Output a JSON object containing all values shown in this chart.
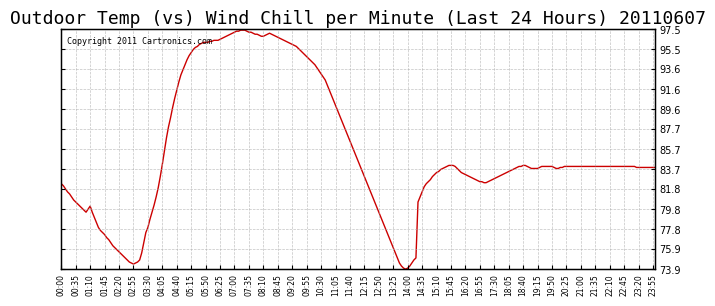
{
  "title": "Outdoor Temp (vs) Wind Chill per Minute (Last 24 Hours) 20110607",
  "copyright": "Copyright 2011 Cartronics.com",
  "ylabel_right_ticks": [
    97.5,
    95.5,
    93.6,
    91.6,
    89.6,
    87.7,
    85.7,
    83.7,
    81.8,
    79.8,
    77.8,
    75.9,
    73.9
  ],
  "ymin": 73.9,
  "ymax": 97.5,
  "line_color": "#cc0000",
  "background_color": "#ffffff",
  "grid_color": "#aaaaaa",
  "title_fontsize": 13,
  "x_tick_interval": 5,
  "curve_points": [
    [
      0,
      82.3
    ],
    [
      5,
      82.1
    ],
    [
      10,
      81.8
    ],
    [
      15,
      81.5
    ],
    [
      20,
      81.3
    ],
    [
      25,
      81.0
    ],
    [
      30,
      80.7
    ],
    [
      35,
      80.5
    ],
    [
      40,
      80.3
    ],
    [
      45,
      80.1
    ],
    [
      50,
      79.9
    ],
    [
      55,
      79.7
    ],
    [
      60,
      79.5
    ],
    [
      65,
      79.8
    ],
    [
      70,
      80.1
    ],
    [
      75,
      79.5
    ],
    [
      80,
      79.0
    ],
    [
      85,
      78.5
    ],
    [
      90,
      78.0
    ],
    [
      95,
      77.7
    ],
    [
      100,
      77.5
    ],
    [
      105,
      77.3
    ],
    [
      110,
      77.0
    ],
    [
      115,
      76.8
    ],
    [
      120,
      76.5
    ],
    [
      125,
      76.2
    ],
    [
      130,
      76.0
    ],
    [
      135,
      75.8
    ],
    [
      140,
      75.6
    ],
    [
      145,
      75.4
    ],
    [
      150,
      75.2
    ],
    [
      155,
      75.0
    ],
    [
      160,
      74.8
    ],
    [
      165,
      74.6
    ],
    [
      170,
      74.5
    ],
    [
      175,
      74.4
    ],
    [
      180,
      74.5
    ],
    [
      185,
      74.6
    ],
    [
      190,
      74.8
    ],
    [
      195,
      75.5
    ],
    [
      200,
      76.5
    ],
    [
      205,
      77.5
    ],
    [
      210,
      78.0
    ],
    [
      215,
      78.8
    ],
    [
      220,
      79.5
    ],
    [
      225,
      80.2
    ],
    [
      230,
      81.0
    ],
    [
      235,
      81.9
    ],
    [
      240,
      83.0
    ],
    [
      245,
      84.2
    ],
    [
      250,
      85.5
    ],
    [
      255,
      86.8
    ],
    [
      260,
      87.9
    ],
    [
      265,
      88.8
    ],
    [
      270,
      89.8
    ],
    [
      275,
      90.7
    ],
    [
      280,
      91.5
    ],
    [
      285,
      92.3
    ],
    [
      290,
      93.0
    ],
    [
      295,
      93.5
    ],
    [
      300,
      94.0
    ],
    [
      305,
      94.5
    ],
    [
      310,
      94.9
    ],
    [
      315,
      95.2
    ],
    [
      320,
      95.5
    ],
    [
      325,
      95.7
    ],
    [
      330,
      95.8
    ],
    [
      335,
      96.0
    ],
    [
      340,
      96.1
    ],
    [
      345,
      96.2
    ],
    [
      350,
      96.2
    ],
    [
      355,
      96.2
    ],
    [
      360,
      96.3
    ],
    [
      365,
      96.3
    ],
    [
      370,
      96.4
    ],
    [
      375,
      96.4
    ],
    [
      380,
      96.4
    ],
    [
      385,
      96.5
    ],
    [
      390,
      96.6
    ],
    [
      395,
      96.7
    ],
    [
      400,
      96.8
    ],
    [
      405,
      96.9
    ],
    [
      410,
      97.0
    ],
    [
      415,
      97.1
    ],
    [
      420,
      97.2
    ],
    [
      425,
      97.3
    ],
    [
      430,
      97.3
    ],
    [
      435,
      97.4
    ],
    [
      440,
      97.4
    ],
    [
      445,
      97.4
    ],
    [
      450,
      97.3
    ],
    [
      455,
      97.2
    ],
    [
      460,
      97.2
    ],
    [
      465,
      97.1
    ],
    [
      470,
      97.0
    ],
    [
      475,
      97.0
    ],
    [
      480,
      96.9
    ],
    [
      485,
      96.8
    ],
    [
      490,
      96.8
    ],
    [
      495,
      96.9
    ],
    [
      500,
      97.0
    ],
    [
      505,
      97.1
    ],
    [
      510,
      97.0
    ],
    [
      515,
      96.9
    ],
    [
      520,
      96.8
    ],
    [
      525,
      96.7
    ],
    [
      530,
      96.6
    ],
    [
      535,
      96.5
    ],
    [
      540,
      96.4
    ],
    [
      545,
      96.3
    ],
    [
      550,
      96.2
    ],
    [
      555,
      96.1
    ],
    [
      560,
      96.0
    ],
    [
      565,
      95.9
    ],
    [
      570,
      95.8
    ],
    [
      575,
      95.6
    ],
    [
      580,
      95.4
    ],
    [
      585,
      95.2
    ],
    [
      590,
      95.0
    ],
    [
      595,
      94.8
    ],
    [
      600,
      94.6
    ],
    [
      605,
      94.4
    ],
    [
      610,
      94.2
    ],
    [
      615,
      94.0
    ],
    [
      620,
      93.7
    ],
    [
      625,
      93.4
    ],
    [
      630,
      93.1
    ],
    [
      635,
      92.8
    ],
    [
      640,
      92.5
    ],
    [
      645,
      92.0
    ],
    [
      650,
      91.5
    ],
    [
      655,
      91.0
    ],
    [
      660,
      90.5
    ],
    [
      665,
      90.0
    ],
    [
      670,
      89.5
    ],
    [
      675,
      89.0
    ],
    [
      680,
      88.5
    ],
    [
      685,
      88.0
    ],
    [
      690,
      87.5
    ],
    [
      695,
      87.0
    ],
    [
      700,
      86.5
    ],
    [
      705,
      86.0
    ],
    [
      710,
      85.5
    ],
    [
      715,
      85.0
    ],
    [
      720,
      84.5
    ],
    [
      725,
      84.0
    ],
    [
      730,
      83.5
    ],
    [
      735,
      83.0
    ],
    [
      740,
      82.5
    ],
    [
      745,
      82.0
    ],
    [
      750,
      81.5
    ],
    [
      755,
      81.0
    ],
    [
      760,
      80.5
    ],
    [
      765,
      80.0
    ],
    [
      770,
      79.5
    ],
    [
      775,
      79.0
    ],
    [
      780,
      78.5
    ],
    [
      785,
      78.0
    ],
    [
      790,
      77.5
    ],
    [
      795,
      77.0
    ],
    [
      800,
      76.5
    ],
    [
      805,
      76.0
    ],
    [
      810,
      75.5
    ],
    [
      815,
      75.0
    ],
    [
      820,
      74.5
    ],
    [
      825,
      74.2
    ],
    [
      830,
      74.0
    ],
    [
      835,
      73.9
    ],
    [
      840,
      74.0
    ],
    [
      845,
      74.2
    ],
    [
      850,
      74.5
    ],
    [
      855,
      74.8
    ],
    [
      860,
      75.0
    ],
    [
      865,
      80.5
    ],
    [
      870,
      81.0
    ],
    [
      875,
      81.5
    ],
    [
      880,
      82.0
    ],
    [
      885,
      82.3
    ],
    [
      890,
      82.5
    ],
    [
      895,
      82.7
    ],
    [
      900,
      83.0
    ],
    [
      905,
      83.2
    ],
    [
      910,
      83.4
    ],
    [
      915,
      83.5
    ],
    [
      920,
      83.7
    ],
    [
      925,
      83.8
    ],
    [
      930,
      83.9
    ],
    [
      935,
      84.0
    ],
    [
      940,
      84.1
    ],
    [
      945,
      84.1
    ],
    [
      950,
      84.1
    ],
    [
      955,
      84.0
    ],
    [
      960,
      83.8
    ],
    [
      965,
      83.6
    ],
    [
      970,
      83.4
    ],
    [
      975,
      83.3
    ],
    [
      980,
      83.2
    ],
    [
      985,
      83.1
    ],
    [
      990,
      83.0
    ],
    [
      995,
      82.9
    ],
    [
      1000,
      82.8
    ],
    [
      1005,
      82.7
    ],
    [
      1010,
      82.6
    ],
    [
      1015,
      82.5
    ],
    [
      1020,
      82.5
    ],
    [
      1025,
      82.4
    ],
    [
      1030,
      82.4
    ],
    [
      1035,
      82.5
    ],
    [
      1040,
      82.6
    ],
    [
      1045,
      82.7
    ],
    [
      1050,
      82.8
    ],
    [
      1055,
      82.9
    ],
    [
      1060,
      83.0
    ],
    [
      1065,
      83.1
    ],
    [
      1070,
      83.2
    ],
    [
      1075,
      83.3
    ],
    [
      1080,
      83.4
    ],
    [
      1085,
      83.5
    ],
    [
      1090,
      83.6
    ],
    [
      1095,
      83.7
    ],
    [
      1100,
      83.8
    ],
    [
      1105,
      83.9
    ],
    [
      1110,
      84.0
    ],
    [
      1115,
      84.0
    ],
    [
      1120,
      84.1
    ],
    [
      1125,
      84.1
    ],
    [
      1130,
      84.0
    ],
    [
      1135,
      83.9
    ],
    [
      1140,
      83.8
    ],
    [
      1145,
      83.8
    ],
    [
      1150,
      83.8
    ],
    [
      1155,
      83.8
    ],
    [
      1160,
      83.9
    ],
    [
      1165,
      84.0
    ],
    [
      1170,
      84.0
    ],
    [
      1175,
      84.0
    ],
    [
      1180,
      84.0
    ],
    [
      1185,
      84.0
    ],
    [
      1190,
      84.0
    ],
    [
      1195,
      83.9
    ],
    [
      1200,
      83.8
    ],
    [
      1205,
      83.8
    ],
    [
      1210,
      83.9
    ],
    [
      1215,
      83.9
    ],
    [
      1220,
      84.0
    ],
    [
      1225,
      84.0
    ],
    [
      1230,
      84.0
    ],
    [
      1235,
      84.0
    ],
    [
      1240,
      84.0
    ],
    [
      1245,
      84.0
    ],
    [
      1250,
      84.0
    ],
    [
      1255,
      84.0
    ],
    [
      1260,
      84.0
    ],
    [
      1265,
      84.0
    ],
    [
      1270,
      84.0
    ],
    [
      1275,
      84.0
    ],
    [
      1280,
      84.0
    ],
    [
      1285,
      84.0
    ],
    [
      1290,
      84.0
    ],
    [
      1295,
      84.0
    ],
    [
      1300,
      84.0
    ],
    [
      1305,
      84.0
    ],
    [
      1310,
      84.0
    ],
    [
      1315,
      84.0
    ],
    [
      1320,
      84.0
    ],
    [
      1325,
      84.0
    ],
    [
      1330,
      84.0
    ],
    [
      1335,
      84.0
    ],
    [
      1340,
      84.0
    ],
    [
      1345,
      84.0
    ],
    [
      1350,
      84.0
    ],
    [
      1355,
      84.0
    ],
    [
      1360,
      84.0
    ],
    [
      1365,
      84.0
    ],
    [
      1370,
      84.0
    ],
    [
      1375,
      84.0
    ],
    [
      1380,
      84.0
    ],
    [
      1385,
      84.0
    ],
    [
      1390,
      84.0
    ],
    [
      1395,
      83.9
    ],
    [
      1400,
      83.9
    ],
    [
      1405,
      83.9
    ],
    [
      1410,
      83.9
    ],
    [
      1415,
      83.9
    ],
    [
      1420,
      83.9
    ],
    [
      1425,
      83.9
    ],
    [
      1430,
      83.9
    ],
    [
      1435,
      83.9
    ],
    [
      1439,
      83.9
    ]
  ]
}
